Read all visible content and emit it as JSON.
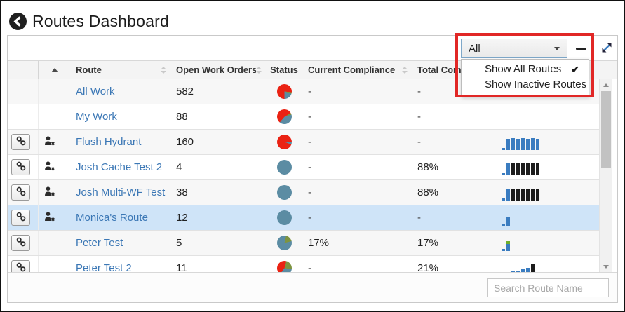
{
  "header": {
    "title": "Routes Dashboard"
  },
  "toolbar": {
    "filter": {
      "value": "All"
    }
  },
  "filter_menu": {
    "items": [
      {
        "label": "Show All Routes",
        "checked": true
      },
      {
        "label": "Show Inactive Routes",
        "checked": false
      }
    ]
  },
  "table": {
    "columns": [
      {
        "label": "",
        "kind": "link-col"
      },
      {
        "label": "",
        "kind": "sort-active-col"
      },
      {
        "label": "Route",
        "sortable": true
      },
      {
        "label": "Open Work Orders",
        "sortable": true
      },
      {
        "label": "Status",
        "sortable": false
      },
      {
        "label": "Current Compliance",
        "sortable": true
      },
      {
        "label": "Total Compliance",
        "sortable": true
      },
      {
        "label": "",
        "kind": "spark-col"
      }
    ],
    "rows": [
      {
        "name": "All Work",
        "open_work_orders": "582",
        "current": "-",
        "total": "-",
        "has_link": false,
        "has_user_remove": false,
        "selected": false,
        "pie": [
          [
            "red",
            95
          ],
          [
            "olive",
            13
          ],
          [
            "teal",
            72
          ],
          [
            "red",
            180
          ]
        ],
        "spark": []
      },
      {
        "name": "My Work",
        "open_work_orders": "88",
        "current": "-",
        "total": "-",
        "has_link": false,
        "has_user_remove": false,
        "selected": false,
        "pie": [
          [
            "red",
            60
          ],
          [
            "olive",
            14
          ],
          [
            "teal",
            146
          ],
          [
            "red",
            140
          ]
        ],
        "spark": []
      },
      {
        "name": "Flush Hydrant",
        "open_work_orders": "160",
        "current": "-",
        "total": "-",
        "has_link": true,
        "has_user_remove": true,
        "selected": false,
        "pie": [
          [
            "red",
            88
          ],
          [
            "teal",
            22
          ],
          [
            "red",
            250
          ]
        ],
        "spark": [
          [
            [
              "blue",
              3
            ]
          ],
          [
            [
              "blue",
              16
            ]
          ],
          [
            [
              "blue",
              17
            ]
          ],
          [
            [
              "blue",
              16
            ]
          ],
          [
            [
              "blue",
              17
            ]
          ],
          [
            [
              "blue",
              16
            ]
          ],
          [
            [
              "blue",
              17
            ]
          ],
          [
            [
              "blue",
              16
            ]
          ]
        ]
      },
      {
        "name": "Josh Cache Test 2",
        "open_work_orders": "4",
        "current": "-",
        "total": "88%",
        "has_link": true,
        "has_user_remove": true,
        "selected": false,
        "pie": [
          [
            "teal",
            360
          ]
        ],
        "spark": [
          [
            [
              "blue",
              3
            ]
          ],
          [
            [
              "blue",
              17
            ]
          ],
          [
            [
              "black",
              17
            ]
          ],
          [
            [
              "black",
              17
            ]
          ],
          [
            [
              "black",
              17
            ]
          ],
          [
            [
              "black",
              17
            ]
          ],
          [
            [
              "black",
              17
            ]
          ],
          [
            [
              "black",
              17
            ]
          ]
        ]
      },
      {
        "name": "Josh Multi-WF Test",
        "open_work_orders": "38",
        "current": "-",
        "total": "88%",
        "has_link": true,
        "has_user_remove": true,
        "selected": false,
        "pie": [
          [
            "teal",
            360
          ]
        ],
        "spark": [
          [
            [
              "blue",
              3
            ]
          ],
          [
            [
              "blue",
              17
            ]
          ],
          [
            [
              "black",
              17
            ]
          ],
          [
            [
              "black",
              17
            ]
          ],
          [
            [
              "black",
              17
            ]
          ],
          [
            [
              "black",
              17
            ]
          ],
          [
            [
              "black",
              17
            ]
          ],
          [
            [
              "black",
              17
            ]
          ]
        ]
      },
      {
        "name": "Monica's Route",
        "open_work_orders": "12",
        "current": "-",
        "total": "-",
        "has_link": true,
        "has_user_remove": true,
        "selected": true,
        "pie": [
          [
            "teal",
            360
          ]
        ],
        "spark": [
          [
            [
              "blue",
              3
            ]
          ],
          [
            [
              "blue",
              13
            ]
          ]
        ]
      },
      {
        "name": "Peter Test",
        "open_work_orders": "5",
        "current": "17%",
        "total": "17%",
        "has_link": true,
        "has_user_remove": false,
        "selected": false,
        "pie": [
          [
            "teal",
            14
          ],
          [
            "olive",
            62
          ],
          [
            "teal",
            284
          ]
        ],
        "spark": [
          [
            [
              "blue",
              3
            ]
          ],
          [
            [
              "blue",
              10
            ],
            [
              "green",
              4
            ]
          ]
        ]
      },
      {
        "name": "Peter Test 2",
        "open_work_orders": "11",
        "current": "-",
        "total": "21%",
        "has_link": true,
        "has_user_remove": false,
        "selected": false,
        "pie": [
          [
            "red",
            15
          ],
          [
            "olive",
            80
          ],
          [
            "teal",
            122
          ],
          [
            "red",
            143
          ]
        ],
        "spark": [
          [
            [
              "blue",
              3
            ]
          ],
          [
            [
              "blue",
              6
            ]
          ],
          [
            [
              "blue",
              7
            ]
          ],
          [
            [
              "blue",
              8
            ]
          ],
          [
            [
              "blue",
              10
            ]
          ],
          [
            [
              "blue",
              12
            ]
          ],
          [
            [
              "green",
              4
            ],
            [
              "black",
              14
            ]
          ]
        ]
      }
    ]
  },
  "search": {
    "placeholder": "Search Route Name"
  },
  "colors": {
    "red": "#ea2213",
    "teal": "#5b8ca3",
    "olive": "#7e9440",
    "blue": "#3a7cc0",
    "black": "#1c1c1c",
    "green": "#6fae2c",
    "selected_row": "#cfe4f8",
    "annotation": "#e12726",
    "link": "#3b77b5"
  }
}
